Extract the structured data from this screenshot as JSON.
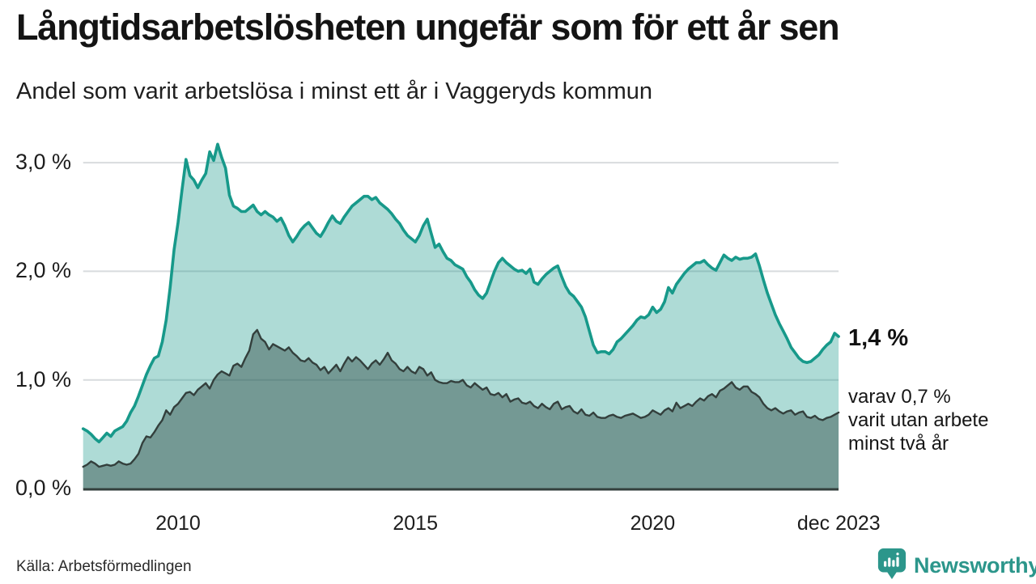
{
  "header": {
    "title": "Långtidsarbetslösheten ungefär som för ett år sen",
    "subtitle": "Andel som varit arbetslösa i minst ett år i Vaggeryds kommun"
  },
  "colors": {
    "accent": "#17998a",
    "accent_fill": "#17998a",
    "dark_line": "#333f3c",
    "dark_fill": "#2e4a44",
    "grid": "#d8dbde",
    "baseline": "#333f3c",
    "text": "#141414",
    "brand": "#2c968b"
  },
  "chart_data": {
    "type": "area",
    "title": "Långtidsarbetslösheten ungefär som för ett år sen",
    "subtitle": "Andel som varit arbetslösa i minst ett år i Vaggeryds kommun",
    "unit": "%",
    "frequency": "monthly",
    "x_start": "2008-01",
    "x_end": "2023-12",
    "xlabel": "",
    "ylabel": "",
    "ylim": [
      0,
      3.35
    ],
    "grid": "horizontal",
    "legend": "none",
    "y_ticks": [
      {
        "v": 0,
        "label": "0,0 %"
      },
      {
        "v": 1,
        "label": "1,0 %"
      },
      {
        "v": 2,
        "label": "2,0 %"
      },
      {
        "v": 3,
        "label": "3,0 %"
      }
    ],
    "x_ticks": [
      {
        "t": 2010,
        "label": "2010"
      },
      {
        "t": 2015,
        "label": "2015"
      },
      {
        "t": 2020,
        "label": "2020"
      },
      {
        "t": 2023.92,
        "label": "dec 2023"
      }
    ],
    "annotations": {
      "end_label": "1,4 %",
      "note_lines": [
        "varav 0,7 %",
        "varit utan arbete",
        "minst två år"
      ],
      "latest_minst_ett_ar_pct": 1.4,
      "latest_minst_tva_ar_pct": 0.7
    },
    "series": [
      {
        "name": "Andel arbetslösa minst ett år",
        "color": "#17998a",
        "fill": "#17998a",
        "fill_opacity": 0.35,
        "stroke_width": 3.6,
        "values": [
          0.55,
          0.53,
          0.5,
          0.46,
          0.43,
          0.47,
          0.51,
          0.48,
          0.53,
          0.55,
          0.57,
          0.62,
          0.7,
          0.76,
          0.85,
          0.95,
          1.05,
          1.13,
          1.2,
          1.22,
          1.35,
          1.55,
          1.85,
          2.2,
          2.45,
          2.75,
          3.03,
          2.88,
          2.84,
          2.77,
          2.84,
          2.9,
          3.1,
          3.02,
          3.17,
          3.05,
          2.95,
          2.7,
          2.6,
          2.58,
          2.55,
          2.55,
          2.58,
          2.61,
          2.55,
          2.52,
          2.55,
          2.52,
          2.5,
          2.46,
          2.49,
          2.42,
          2.33,
          2.27,
          2.32,
          2.38,
          2.42,
          2.45,
          2.4,
          2.35,
          2.32,
          2.38,
          2.45,
          2.51,
          2.46,
          2.44,
          2.5,
          2.55,
          2.6,
          2.63,
          2.66,
          2.69,
          2.69,
          2.66,
          2.68,
          2.63,
          2.6,
          2.57,
          2.53,
          2.48,
          2.44,
          2.38,
          2.33,
          2.3,
          2.27,
          2.33,
          2.42,
          2.48,
          2.35,
          2.22,
          2.25,
          2.18,
          2.12,
          2.1,
          2.06,
          2.04,
          2.02,
          1.95,
          1.9,
          1.83,
          1.78,
          1.75,
          1.8,
          1.9,
          2.0,
          2.08,
          2.12,
          2.08,
          2.05,
          2.02,
          2.0,
          2.01,
          1.98,
          2.02,
          1.9,
          1.88,
          1.93,
          1.97,
          2.0,
          2.03,
          2.05,
          1.95,
          1.86,
          1.8,
          1.77,
          1.72,
          1.67,
          1.58,
          1.45,
          1.32,
          1.25,
          1.26,
          1.26,
          1.24,
          1.28,
          1.35,
          1.38,
          1.42,
          1.46,
          1.5,
          1.55,
          1.58,
          1.57,
          1.6,
          1.67,
          1.62,
          1.65,
          1.72,
          1.85,
          1.8,
          1.88,
          1.93,
          1.98,
          2.02,
          2.05,
          2.08,
          2.08,
          2.1,
          2.06,
          2.03,
          2.01,
          2.08,
          2.15,
          2.12,
          2.1,
          2.13,
          2.11,
          2.12,
          2.12,
          2.13,
          2.16,
          2.05,
          1.92,
          1.8,
          1.7,
          1.6,
          1.52,
          1.45,
          1.38,
          1.3,
          1.25,
          1.2,
          1.17,
          1.16,
          1.17,
          1.2,
          1.23,
          1.28,
          1.32,
          1.35,
          1.43,
          1.4
        ]
      },
      {
        "name": "Andel arbetslösa minst två år",
        "color": "#333f3c",
        "fill": "#2e4a44",
        "fill_opacity": 0.45,
        "stroke_width": 2.4,
        "values": [
          0.2,
          0.22,
          0.25,
          0.23,
          0.2,
          0.21,
          0.22,
          0.21,
          0.22,
          0.25,
          0.23,
          0.22,
          0.23,
          0.27,
          0.32,
          0.42,
          0.48,
          0.47,
          0.52,
          0.58,
          0.63,
          0.72,
          0.68,
          0.75,
          0.78,
          0.83,
          0.88,
          0.89,
          0.86,
          0.91,
          0.94,
          0.97,
          0.92,
          1.0,
          1.05,
          1.08,
          1.06,
          1.04,
          1.13,
          1.15,
          1.12,
          1.2,
          1.27,
          1.42,
          1.46,
          1.38,
          1.35,
          1.28,
          1.33,
          1.31,
          1.29,
          1.27,
          1.3,
          1.25,
          1.22,
          1.18,
          1.17,
          1.2,
          1.16,
          1.14,
          1.09,
          1.12,
          1.06,
          1.1,
          1.14,
          1.08,
          1.15,
          1.21,
          1.17,
          1.21,
          1.18,
          1.14,
          1.1,
          1.15,
          1.18,
          1.14,
          1.19,
          1.25,
          1.18,
          1.15,
          1.1,
          1.08,
          1.12,
          1.08,
          1.06,
          1.12,
          1.1,
          1.04,
          1.07,
          1.0,
          0.98,
          0.97,
          0.97,
          0.99,
          0.98,
          0.98,
          1.0,
          0.95,
          0.93,
          0.97,
          0.94,
          0.91,
          0.93,
          0.87,
          0.86,
          0.88,
          0.84,
          0.87,
          0.8,
          0.82,
          0.83,
          0.79,
          0.78,
          0.8,
          0.76,
          0.74,
          0.78,
          0.75,
          0.73,
          0.78,
          0.8,
          0.73,
          0.75,
          0.76,
          0.71,
          0.69,
          0.73,
          0.68,
          0.67,
          0.7,
          0.66,
          0.65,
          0.65,
          0.67,
          0.68,
          0.66,
          0.65,
          0.67,
          0.68,
          0.69,
          0.67,
          0.65,
          0.66,
          0.68,
          0.72,
          0.7,
          0.68,
          0.72,
          0.74,
          0.71,
          0.79,
          0.74,
          0.76,
          0.78,
          0.76,
          0.8,
          0.83,
          0.81,
          0.85,
          0.87,
          0.84,
          0.9,
          0.92,
          0.95,
          0.98,
          0.93,
          0.91,
          0.94,
          0.94,
          0.89,
          0.87,
          0.84,
          0.78,
          0.74,
          0.72,
          0.74,
          0.71,
          0.69,
          0.71,
          0.72,
          0.68,
          0.7,
          0.71,
          0.66,
          0.65,
          0.67,
          0.64,
          0.63,
          0.65,
          0.66,
          0.68,
          0.7
        ]
      }
    ]
  },
  "footer": {
    "source": "Källa: Arbetsförmedlingen",
    "brand_name": "Newsworthy"
  }
}
